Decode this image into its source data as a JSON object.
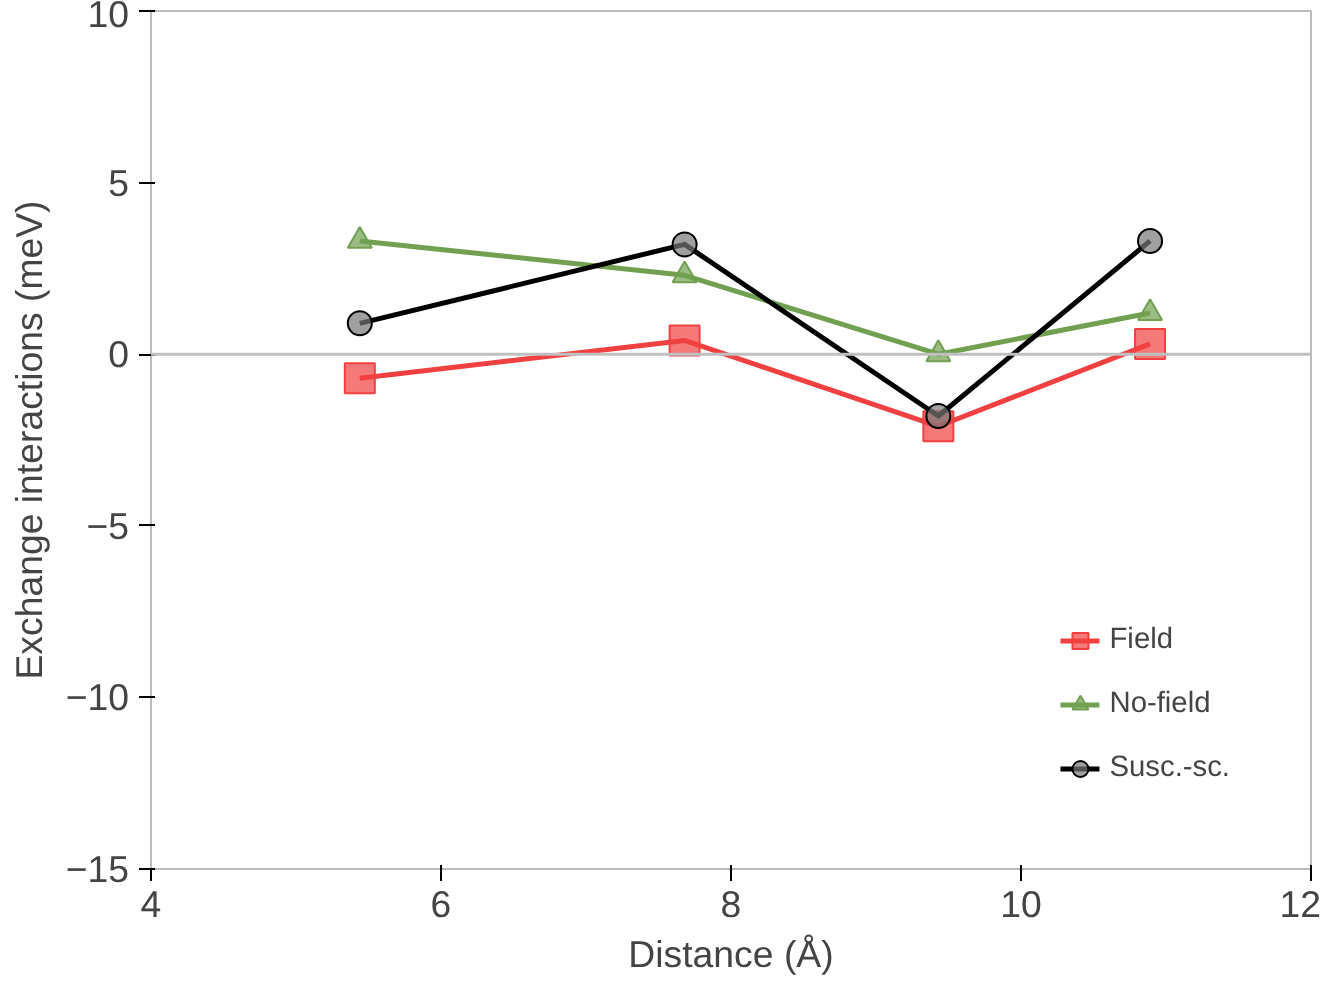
{
  "chart_data": {
    "type": "line",
    "xlabel": "Distance (Å)",
    "ylabel": "Exchange interactions (meV)",
    "xlim": [
      4,
      12
    ],
    "xticks": [
      4,
      6,
      8,
      10,
      12
    ],
    "ylim": [
      -15,
      10
    ],
    "yticks": [
      -15,
      -10,
      -5,
      0,
      5,
      10
    ],
    "grid": false,
    "legend": "bottom right",
    "ref_lines": [
      {
        "axis": "y",
        "value": 0,
        "color": "#c0c0c0"
      }
    ],
    "series": [
      {
        "name": "Field",
        "color": "#f04040",
        "marker": "square",
        "x": [
          5.44,
          7.68,
          9.43,
          10.89
        ],
        "values": [
          -0.7,
          0.4,
          -2.1,
          0.3
        ]
      },
      {
        "name": "No-field",
        "color": "#70a050",
        "marker": "triangle",
        "x": [
          5.44,
          7.68,
          9.43,
          10.89
        ],
        "values": [
          3.3,
          2.3,
          0.0,
          1.2
        ]
      },
      {
        "name": "Susc.-sc.",
        "color": "#000000",
        "marker": "circle",
        "x": [
          5.44,
          7.68,
          9.43,
          10.89
        ],
        "values": [
          0.9,
          3.2,
          -1.8,
          3.3
        ]
      }
    ]
  }
}
